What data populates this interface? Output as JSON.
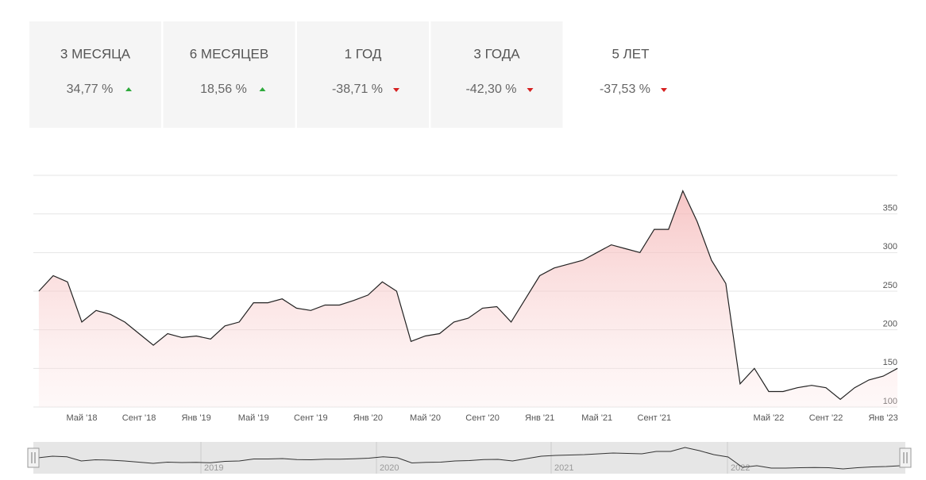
{
  "tabs": [
    {
      "label": "3 МЕСЯЦА",
      "change": "34,77 %",
      "direction": "up"
    },
    {
      "label": "6 МЕСЯЦЕВ",
      "change": "18,56 %",
      "direction": "up"
    },
    {
      "label": "1 ГОД",
      "change": "-38,71 %",
      "direction": "down"
    },
    {
      "label": "3 ГОДА",
      "change": "-42,30 %",
      "direction": "down"
    },
    {
      "label": "5 ЛЕТ",
      "change": "-37,53 %",
      "direction": "down"
    }
  ],
  "selected_tab": 4,
  "chart_data": {
    "type": "line",
    "categories": [
      null,
      null,
      null,
      "Май '18",
      null,
      null,
      null,
      "Сент '18",
      null,
      null,
      null,
      "Янв '19",
      null,
      null,
      null,
      "Май '19",
      null,
      null,
      null,
      "Сент '19",
      null,
      null,
      null,
      "Янв '20",
      null,
      null,
      null,
      "Май '20",
      null,
      null,
      null,
      "Сент '20",
      null,
      null,
      null,
      "Янв '21",
      null,
      null,
      null,
      "Май '21",
      null,
      null,
      null,
      "Сент '21",
      null,
      null,
      null,
      null,
      null,
      null,
      null,
      "Май '22",
      null,
      null,
      null,
      "Сент '22",
      null,
      null,
      null,
      "Янв '23",
      null
    ],
    "series": [
      {
        "color": "#222222",
        "values": [
          250,
          270,
          262,
          210,
          225,
          220,
          210,
          195,
          180,
          195,
          190,
          192,
          188,
          205,
          210,
          235,
          235,
          240,
          228,
          225,
          232,
          232,
          238,
          245,
          262,
          250,
          185,
          192,
          195,
          210,
          215,
          228,
          230,
          210,
          240,
          270,
          280,
          285,
          290,
          300,
          310,
          305,
          300,
          330,
          330,
          380,
          340,
          290,
          260,
          130,
          150,
          120,
          120,
          125,
          128,
          125,
          110,
          125,
          135,
          140,
          150
        ]
      }
    ],
    "ylim": [
      100,
      400
    ],
    "yticks": [
      100,
      150,
      200,
      250,
      300,
      350
    ],
    "grid": true,
    "navigator_years": [
      "2019",
      "2020",
      "2021",
      "2022"
    ]
  }
}
